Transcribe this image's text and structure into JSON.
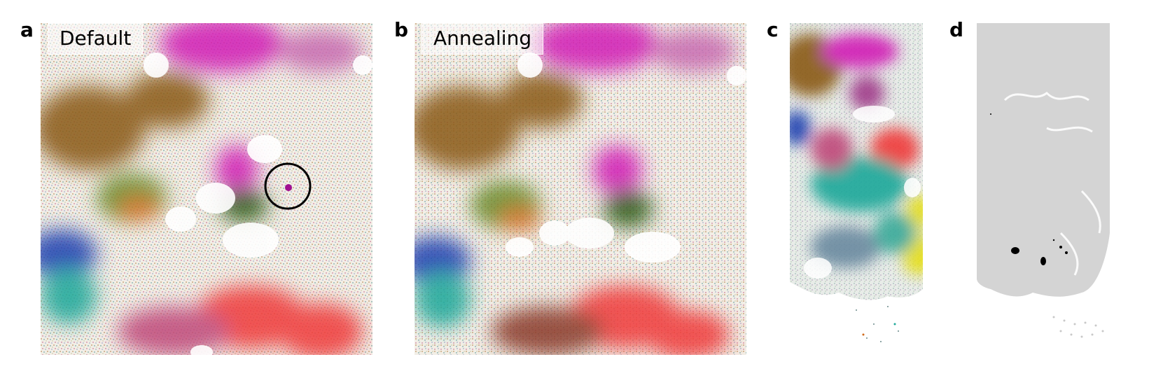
{
  "panels": [
    {
      "letter": "a",
      "label": "Default"
    },
    {
      "letter": "b",
      "label": "Annealing"
    },
    {
      "letter": "c",
      "label": ""
    },
    {
      "letter": "d",
      "label": ""
    }
  ],
  "colors": {
    "brown": "#8a5a14",
    "magenta": "#d11fb5",
    "dark_green": "#2f5a12",
    "blue": "#1a3fb0",
    "teal": "#1fa89a",
    "red": "#f03a3a",
    "orange": "#cf6a1a",
    "yellow": "#e6df12",
    "grey": "#d4d4d4",
    "black": "#000000"
  }
}
